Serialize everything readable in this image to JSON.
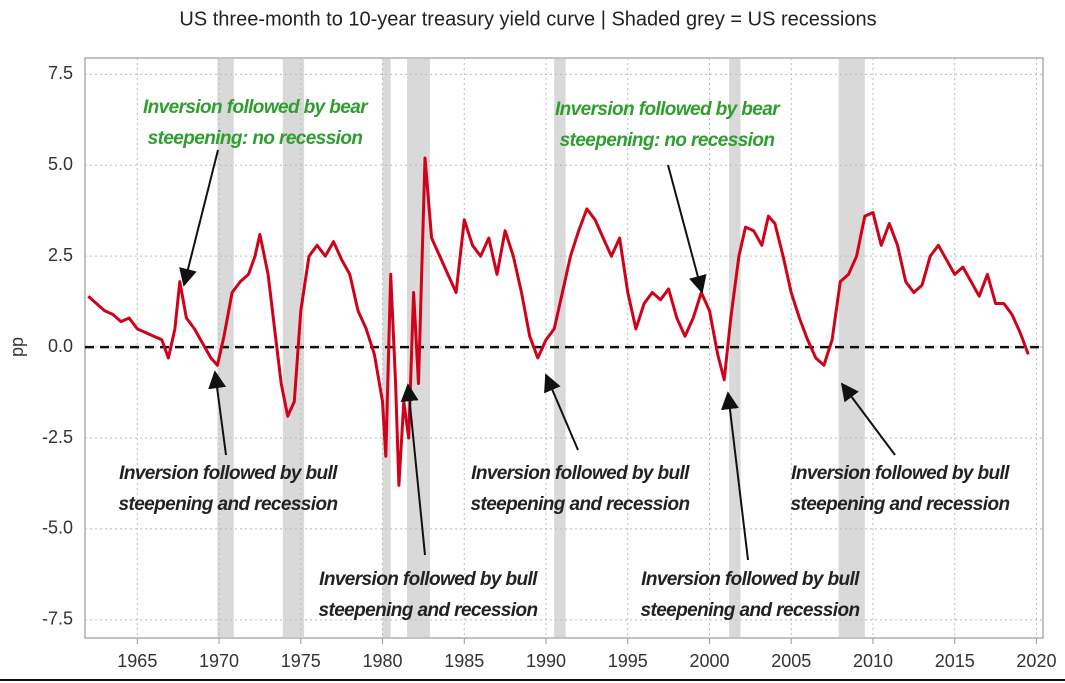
{
  "chart_data": {
    "type": "line",
    "title": "US three-month to 10-year treasury yield curve | Shaded grey = US recessions",
    "ylabel": "pp",
    "color": "#d0021b",
    "x": [
      1962.0,
      1962.5,
      1963,
      1963.5,
      1964,
      1964.5,
      1965,
      1965.5,
      1966,
      1966.5,
      1966.9,
      1967.3,
      1967.6,
      1968,
      1968.5,
      1969,
      1969.5,
      1969.9,
      1970.3,
      1970.8,
      1971.3,
      1971.8,
      1972.2,
      1972.5,
      1973,
      1973.4,
      1973.8,
      1974.2,
      1974.6,
      1975,
      1975.5,
      1976,
      1976.5,
      1977,
      1977.5,
      1978,
      1978.5,
      1979,
      1979.5,
      1980,
      1980.2,
      1980.5,
      1980.8,
      1981,
      1981.3,
      1981.6,
      1981.9,
      1982.2,
      1982.6,
      1983,
      1983.5,
      1984,
      1984.5,
      1985,
      1985.5,
      1986,
      1986.5,
      1987,
      1987.5,
      1988,
      1988.5,
      1989,
      1989.5,
      1990,
      1990.5,
      1991,
      1991.5,
      1992,
      1992.5,
      1993,
      1993.5,
      1994,
      1994.5,
      1995,
      1995.5,
      1996,
      1996.5,
      1997,
      1997.5,
      1998,
      1998.5,
      1999,
      1999.5,
      2000,
      2000.5,
      2000.9,
      2001.3,
      2001.8,
      2002.2,
      2002.7,
      2003.2,
      2003.6,
      2004,
      2004.5,
      2005,
      2005.5,
      2006,
      2006.5,
      2007,
      2007.5,
      2008,
      2008.5,
      2009,
      2009.5,
      2010,
      2010.5,
      2011,
      2011.5,
      2012,
      2012.5,
      2013,
      2013.5,
      2014,
      2014.5,
      2015,
      2015.5,
      2016,
      2016.5,
      2017,
      2017.5,
      2018,
      2018.5,
      2019,
      2019.5
    ],
    "values": [
      1.4,
      1.2,
      1.0,
      0.9,
      0.7,
      0.8,
      0.5,
      0.4,
      0.3,
      0.2,
      -0.3,
      0.5,
      1.8,
      0.8,
      0.5,
      0.1,
      -0.3,
      -0.5,
      0.3,
      1.5,
      1.8,
      2.0,
      2.5,
      3.1,
      2.0,
      0.5,
      -1.0,
      -1.9,
      -1.5,
      1.0,
      2.5,
      2.8,
      2.5,
      2.9,
      2.4,
      2.0,
      1.0,
      0.5,
      -0.2,
      -1.5,
      -3.0,
      2.0,
      -1.0,
      -3.8,
      -1.5,
      -2.5,
      1.5,
      -1.0,
      5.2,
      3.0,
      2.5,
      2.0,
      1.5,
      3.5,
      2.8,
      2.5,
      3.0,
      2.0,
      3.2,
      2.5,
      1.5,
      0.3,
      -0.3,
      0.2,
      0.5,
      1.5,
      2.5,
      3.2,
      3.8,
      3.5,
      3.0,
      2.5,
      3.0,
      1.5,
      0.5,
      1.2,
      1.5,
      1.3,
      1.6,
      0.8,
      0.3,
      0.8,
      1.5,
      1.0,
      -0.2,
      -0.9,
      0.8,
      2.5,
      3.3,
      3.2,
      2.8,
      3.6,
      3.4,
      2.5,
      1.5,
      0.8,
      0.2,
      -0.3,
      -0.5,
      0.2,
      1.8,
      2.0,
      2.5,
      3.6,
      3.7,
      2.8,
      3.4,
      2.8,
      1.8,
      1.5,
      1.7,
      2.5,
      2.8,
      2.4,
      2.0,
      2.2,
      1.8,
      1.4,
      2.0,
      1.2,
      1.2,
      0.9,
      0.4,
      -0.2
    ],
    "recessions": [
      [
        1969.9,
        1970.9
      ],
      [
        1973.9,
        1975.2
      ],
      [
        1980.0,
        1980.5
      ],
      [
        1981.5,
        1982.9
      ],
      [
        1990.5,
        1991.2
      ],
      [
        2001.2,
        2001.9
      ],
      [
        2007.9,
        2009.5
      ]
    ],
    "reference_line": 0,
    "xlim": [
      1961.8,
      2020.4
    ],
    "ylim": [
      -8.0,
      7.95
    ],
    "xticks": [
      1965,
      1970,
      1975,
      1980,
      1985,
      1990,
      1995,
      2000,
      2005,
      2010,
      2015,
      2020
    ],
    "yticks": [
      {
        "value": 7.5,
        "label": "7.5"
      },
      {
        "value": 5,
        "label": "5.0"
      },
      2.5,
      {
        "value": 0,
        "label": "0.0"
      },
      -2.5,
      {
        "value": -5,
        "label": "-5.0"
      },
      -7.5
    ],
    "grid": true,
    "annotations": [
      {
        "lines": [
          "Inversion followed by bear",
          "steepening: no recession"
        ],
        "color": "#2e9e2e"
      },
      {
        "lines": [
          "Inversion followed by bear",
          "steepening: no recession"
        ],
        "color": "#2e9e2e"
      },
      {
        "lines": [
          "Inversion followed by bull",
          "steepening and recession"
        ],
        "color": "#222222"
      },
      {
        "lines": [
          "Inversion followed by bull",
          "steepening and recession"
        ],
        "color": "#222222"
      },
      {
        "lines": [
          "Inversion followed by bull",
          "steepening and recession"
        ],
        "color": "#222222"
      },
      {
        "lines": [
          "Inversion followed by bull",
          "steepening and recession"
        ],
        "color": "#222222"
      },
      {
        "lines": [
          "Inversion followed by bull",
          "steepening and recession"
        ],
        "color": "#222222"
      }
    ]
  }
}
